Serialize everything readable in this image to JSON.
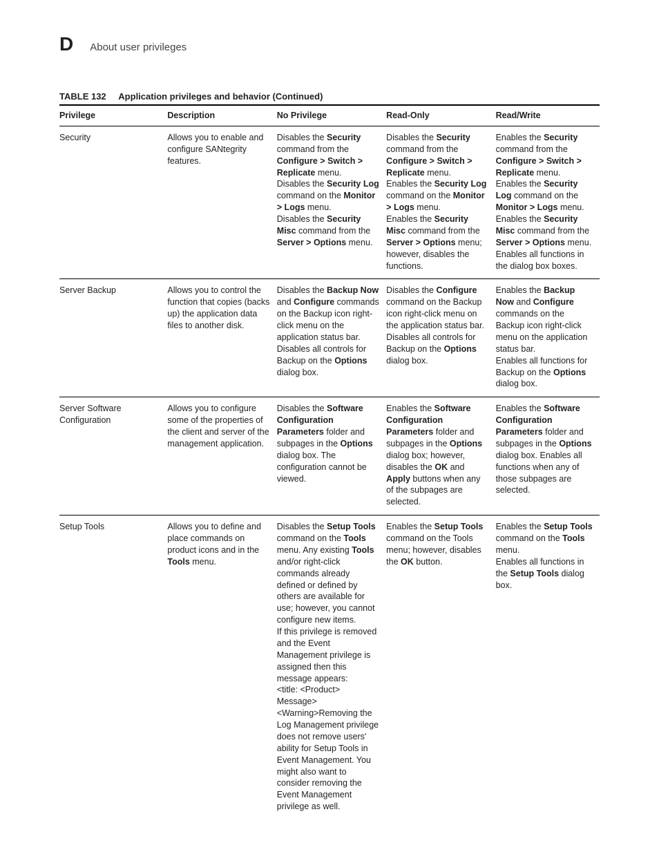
{
  "header": {
    "appendix": "D",
    "section": "About user privileges"
  },
  "caption": {
    "number": "TABLE 132",
    "title": "Application privileges and behavior (Continued)"
  },
  "columns": [
    "Privilege",
    "Description",
    "No Privilege",
    "Read-Only",
    "Read/Write"
  ],
  "rows": [
    {
      "privilege": "Security",
      "description": "Allows you to enable and configure SANtegrity features.",
      "no_privilege": "Disables the <b>Security</b> command from the <b>Configure > Switch > Replicate</b> menu.<br>Disables the <b>Security Log</b> command on the <b>Monitor > Logs</b> menu.<br>Disables the <b>Security Misc</b> command from the <b>Server > Options</b> menu.",
      "read_only": "Disables the <b>Security</b> command from the <b>Configure > Switch > Replicate</b> menu.<br>Enables the <b>Security Log</b> command on the <b>Monitor > Logs</b> menu.<br>Enables the <b>Security Misc</b> command from the <b>Server > Options</b> menu; however, disables the functions.",
      "read_write": "Enables the <b>Security</b> command from the <b>Configure > Switch > Replicate</b> menu.<br>Enables the <b>Security Log</b> command on the <b>Monitor > Logs</b> menu.<br>Enables the <b>Security Misc</b> command from the <b>Server > Options</b> menu.<br>Enables all functions in the dialog box boxes."
    },
    {
      "privilege": "Server Backup",
      "description": "Allows you to control the function that copies (backs up) the application data files to another disk.",
      "no_privilege": "Disables the <b>Backup Now</b> and <b>Configure</b> commands on the Backup icon right-click menu on the application status bar.<br>Disables all controls for Backup on the <b>Options</b> dialog box.",
      "read_only": "Disables the <b>Configure</b> command on the Backup icon right-click menu on the application status bar.<br>Disables all controls for Backup on the <b>Options</b> dialog box.",
      "read_write": "Enables the <b>Backup Now</b> and <b>Configure</b> commands on the Backup icon right-click menu on the application status bar.<br>Enables all functions for Backup on the <b>Options</b> dialog box."
    },
    {
      "privilege": "Server Software Configuration",
      "description": "Allows you to configure some of the properties of the client and server of the management application.",
      "no_privilege": "Disables the <b>Software Configuration Parameters</b> folder and subpages in the <b>Options</b> dialog box. The configuration cannot be viewed.",
      "read_only": "Enables the <b>Software Configuration Parameters</b> folder and subpages in the <b>Options</b> dialog box; however, disables the <b>OK</b> and <b>Apply</b> buttons when any of the subpages are selected.",
      "read_write": "Enables the <b>Software Configuration Parameters</b> folder and subpages in the <b>Options</b> dialog box. Enables all functions when any of those subpages are selected."
    },
    {
      "privilege": "Setup Tools",
      "description": "Allows you to define and place commands on product icons and in the <b>Tools</b> menu.",
      "no_privilege": "Disables the <b>Setup Tools</b> command on the <b>Tools</b> menu. Any existing <b>Tools</b> and/or right-click commands already defined or defined by others are available for use; however, you cannot configure new items.<br>If this privilege is removed and the Event Management privilege is assigned then this message appears:<br>&lt;title: &lt;Product&gt; Message&gt;<br>&lt;Warning&gt;Removing the Log Management privilege does not remove users' ability for Setup Tools in Event Management. You might also want to consider removing the Event Management privilege as well.",
      "read_only": "Enables the <b>Setup Tools</b> command on the Tools menu; however, disables the <b>OK</b> button.",
      "read_write": "Enables the <b>Setup Tools</b> command on the <b>Tools</b> menu.<br>Enables all functions in the <b>Setup Tools</b> dialog box."
    }
  ]
}
